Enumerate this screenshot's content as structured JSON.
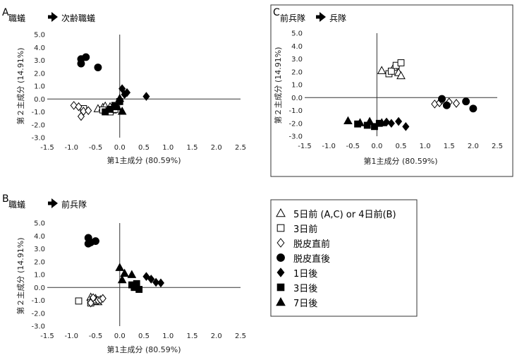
{
  "chart_data": [
    {
      "type": "scatter",
      "panel": "A",
      "title_from": "職蟻",
      "title_to": "次齢職蟻",
      "xlabel": "第1主成分 (80.59%)",
      "ylabel": "第２主成分 (14.91%)",
      "xlim": [
        -1.5,
        2.5
      ],
      "ylim": [
        -3.0,
        5.0
      ],
      "xticks": [
        "-1.5",
        "-1.0",
        "-0.5",
        "0.0",
        "0.5",
        "1.0",
        "1.5",
        "2.0",
        "2.5"
      ],
      "yticks": [
        "5.0",
        "4.0",
        "3.0",
        "2.0",
        "1.0",
        "0.0",
        "-1.0",
        "-2.0",
        "-3.0"
      ],
      "series": [
        {
          "key": "d5",
          "points": [
            [
              -0.45,
              -0.75
            ],
            [
              -0.35,
              -0.65
            ],
            [
              -0.3,
              -0.55
            ],
            [
              -0.2,
              -0.6
            ],
            [
              -0.15,
              -0.85
            ]
          ]
        },
        {
          "key": "d3",
          "points": [
            [
              -0.75,
              -0.75
            ],
            [
              -0.3,
              -0.95
            ],
            [
              -0.2,
              -1.0
            ],
            [
              -0.1,
              -0.8
            ],
            [
              -0.35,
              -0.85
            ]
          ]
        },
        {
          "key": "pre",
          "points": [
            [
              -0.95,
              -0.5
            ],
            [
              -0.85,
              -0.6
            ],
            [
              -0.75,
              -0.95
            ],
            [
              -0.8,
              -1.35
            ],
            [
              -0.65,
              -0.9
            ]
          ]
        },
        {
          "key": "post",
          "points": [
            [
              -0.8,
              3.1
            ],
            [
              -0.7,
              3.25
            ],
            [
              -0.8,
              2.75
            ],
            [
              -0.45,
              2.45
            ]
          ]
        },
        {
          "key": "a1",
          "points": [
            [
              0.05,
              0.8
            ],
            [
              0.15,
              0.5
            ],
            [
              0.1,
              0.35
            ],
            [
              0.55,
              0.2
            ]
          ]
        },
        {
          "key": "a3",
          "points": [
            [
              -0.3,
              -1.0
            ],
            [
              -0.2,
              -0.8
            ],
            [
              -0.1,
              -0.5
            ],
            [
              0.0,
              -0.2
            ]
          ]
        },
        {
          "key": "a7",
          "points": [
            [
              -0.05,
              -0.6
            ],
            [
              0.05,
              -0.95
            ],
            [
              0.0,
              0.05
            ]
          ]
        }
      ]
    },
    {
      "type": "scatter",
      "panel": "B",
      "title_from": "職蟻",
      "title_to": "前兵隊",
      "xlabel": "第1主成分 (80.59%)",
      "ylabel": "第２主成分 (14.91%)",
      "xlim": [
        -1.5,
        2.5
      ],
      "ylim": [
        -3.0,
        5.0
      ],
      "xticks": [
        "-1.5",
        "-1.0",
        "-0.5",
        "0.0",
        "0.5",
        "1.0",
        "1.5",
        "2.0",
        "2.5"
      ],
      "yticks": [
        "5.0",
        "4.0",
        "3.0",
        "2.0",
        "1.0",
        "0.0",
        "-1.0",
        "-2.0",
        "-3.0"
      ],
      "series": [
        {
          "key": "d5",
          "points": [
            [
              -0.6,
              -0.75
            ],
            [
              -0.55,
              -1.0
            ],
            [
              -0.5,
              -0.85
            ],
            [
              -0.45,
              -1.1
            ]
          ]
        },
        {
          "key": "d3",
          "points": [
            [
              -0.85,
              -1.05
            ],
            [
              -0.6,
              -1.2
            ],
            [
              -0.5,
              -1.05
            ],
            [
              -0.55,
              -0.95
            ]
          ]
        },
        {
          "key": "pre",
          "points": [
            [
              -0.6,
              -1.2
            ],
            [
              -0.55,
              -0.8
            ],
            [
              -0.45,
              -1.0
            ],
            [
              -0.4,
              -0.95
            ],
            [
              -0.35,
              -0.85
            ]
          ]
        },
        {
          "key": "post",
          "points": [
            [
              -0.65,
              3.85
            ],
            [
              -0.5,
              3.6
            ],
            [
              -0.65,
              3.4
            ],
            [
              -0.6,
              3.5
            ]
          ]
        },
        {
          "key": "a1",
          "points": [
            [
              0.55,
              0.85
            ],
            [
              0.65,
              0.65
            ],
            [
              0.75,
              0.4
            ],
            [
              0.85,
              0.35
            ]
          ]
        },
        {
          "key": "a3",
          "points": [
            [
              0.25,
              0.2
            ],
            [
              0.35,
              0.3
            ],
            [
              0.3,
              0.0
            ],
            [
              0.4,
              -0.15
            ]
          ]
        },
        {
          "key": "a7",
          "points": [
            [
              0.0,
              1.55
            ],
            [
              0.1,
              1.1
            ],
            [
              0.25,
              1.0
            ],
            [
              0.05,
              0.6
            ]
          ]
        }
      ]
    },
    {
      "type": "scatter",
      "panel": "C",
      "title_from": "前兵隊",
      "title_to": "兵隊",
      "xlabel": "第1主成分 (80.59%)",
      "ylabel": "第２主成分 (14.91%)",
      "xlim": [
        -1.5,
        2.5
      ],
      "ylim": [
        -3.0,
        5.0
      ],
      "xticks": [
        "-1.5",
        "-1.0",
        "-0.5",
        "0.0",
        "0.5",
        "1.0",
        "1.5",
        "2.0",
        "2.5"
      ],
      "yticks": [
        "5.0",
        "4.0",
        "3.0",
        "2.0",
        "1.0",
        "0.0",
        "-1.0",
        "-2.0",
        "-3.0"
      ],
      "series": [
        {
          "key": "d5",
          "points": [
            [
              0.1,
              2.1
            ],
            [
              0.35,
              2.35
            ],
            [
              0.45,
              1.95
            ],
            [
              0.5,
              1.7
            ]
          ]
        },
        {
          "key": "d3",
          "points": [
            [
              0.25,
              1.85
            ],
            [
              0.3,
              2.05
            ],
            [
              0.4,
              2.5
            ],
            [
              0.5,
              2.7
            ]
          ]
        },
        {
          "key": "pre",
          "points": [
            [
              1.2,
              -0.5
            ],
            [
              1.3,
              -0.4
            ],
            [
              1.5,
              -0.35
            ],
            [
              1.65,
              -0.45
            ],
            [
              1.35,
              -0.2
            ]
          ]
        },
        {
          "key": "post",
          "points": [
            [
              1.35,
              -0.1
            ],
            [
              1.45,
              -0.6
            ],
            [
              1.85,
              -0.3
            ],
            [
              2.0,
              -0.85
            ]
          ]
        },
        {
          "key": "a1",
          "points": [
            [
              0.2,
              -1.9
            ],
            [
              0.3,
              -2.0
            ],
            [
              0.45,
              -1.85
            ],
            [
              0.6,
              -2.25
            ]
          ]
        },
        {
          "key": "a3",
          "points": [
            [
              -0.4,
              -2.05
            ],
            [
              -0.2,
              -2.15
            ],
            [
              -0.05,
              -2.25
            ],
            [
              0.05,
              -2.0
            ]
          ]
        },
        {
          "key": "a7",
          "points": [
            [
              -0.6,
              -1.8
            ],
            [
              -0.35,
              -1.95
            ],
            [
              -0.15,
              -1.85
            ],
            [
              0.1,
              -1.95
            ]
          ]
        }
      ]
    }
  ],
  "legend": [
    {
      "key": "d5",
      "marker": "triangle-open",
      "label": "5日前 (A,C) or 4日前(B)"
    },
    {
      "key": "d3",
      "marker": "square-open",
      "label": "3日前"
    },
    {
      "key": "pre",
      "marker": "diamond-open",
      "label": "脱皮直前"
    },
    {
      "key": "post",
      "marker": "circle-filled",
      "label": "脱皮直後"
    },
    {
      "key": "a1",
      "marker": "diamond-filled",
      "label": "1日後"
    },
    {
      "key": "a3",
      "marker": "square-filled",
      "label": "3日後"
    },
    {
      "key": "a7",
      "marker": "triangle-filled",
      "label": "7日後"
    }
  ],
  "arrow_icon": "right-arrow-icon",
  "colors": {
    "open_fill": "#ffffff",
    "filled_fill": "#000000",
    "stroke": "#000000"
  }
}
